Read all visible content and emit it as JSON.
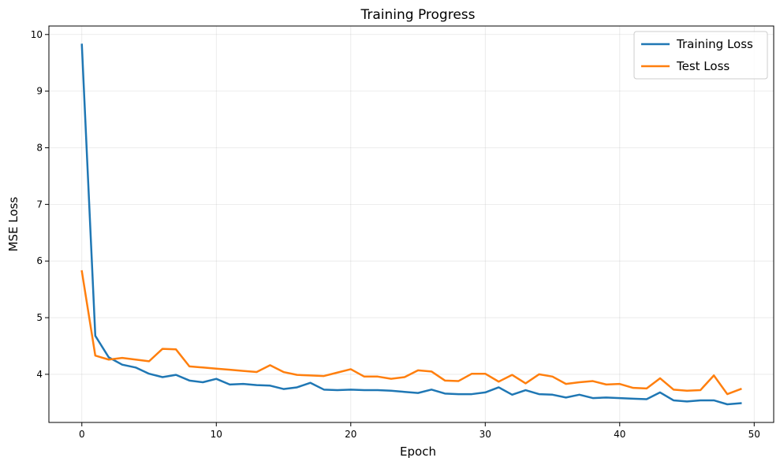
{
  "chart_data": {
    "type": "line",
    "title": "Training Progress",
    "xlabel": "Epoch",
    "ylabel": "MSE Loss",
    "xlim": [
      -2.45,
      51.45
    ],
    "ylim": [
      3.15,
      10.15
    ],
    "xticks": [
      0,
      10,
      20,
      30,
      40,
      50
    ],
    "yticks": [
      4,
      5,
      6,
      7,
      8,
      9,
      10
    ],
    "grid": true,
    "legend_position": "top-right",
    "x": [
      0,
      1,
      2,
      3,
      4,
      5,
      6,
      7,
      8,
      9,
      10,
      11,
      12,
      13,
      14,
      15,
      16,
      17,
      18,
      19,
      20,
      21,
      22,
      23,
      24,
      25,
      26,
      27,
      28,
      29,
      30,
      31,
      32,
      33,
      34,
      35,
      36,
      37,
      38,
      39,
      40,
      41,
      42,
      43,
      44,
      45,
      46,
      47,
      48,
      49
    ],
    "series": [
      {
        "name": "Training Loss",
        "color": "#1f77b4",
        "values": [
          9.82,
          4.68,
          4.3,
          4.17,
          4.12,
          4.01,
          3.95,
          3.99,
          3.89,
          3.86,
          3.92,
          3.82,
          3.83,
          3.81,
          3.8,
          3.74,
          3.77,
          3.85,
          3.73,
          3.72,
          3.73,
          3.72,
          3.72,
          3.71,
          3.69,
          3.67,
          3.73,
          3.66,
          3.65,
          3.65,
          3.68,
          3.77,
          3.64,
          3.72,
          3.65,
          3.64,
          3.59,
          3.64,
          3.58,
          3.59,
          3.58,
          3.57,
          3.56,
          3.68,
          3.54,
          3.52,
          3.54,
          3.54,
          3.47,
          3.49
        ]
      },
      {
        "name": "Test Loss",
        "color": "#ff7f0e",
        "values": [
          5.82,
          4.33,
          4.26,
          4.29,
          4.26,
          4.23,
          4.45,
          4.44,
          4.14,
          4.12,
          4.1,
          4.08,
          4.06,
          4.04,
          4.16,
          4.04,
          3.99,
          3.98,
          3.97,
          4.03,
          4.09,
          3.96,
          3.96,
          3.92,
          3.95,
          4.07,
          4.05,
          3.89,
          3.88,
          4.01,
          4.01,
          3.87,
          3.99,
          3.84,
          4.0,
          3.96,
          3.83,
          3.86,
          3.88,
          3.82,
          3.83,
          3.76,
          3.75,
          3.93,
          3.73,
          3.71,
          3.72,
          3.98,
          3.65,
          3.74
        ]
      }
    ]
  }
}
